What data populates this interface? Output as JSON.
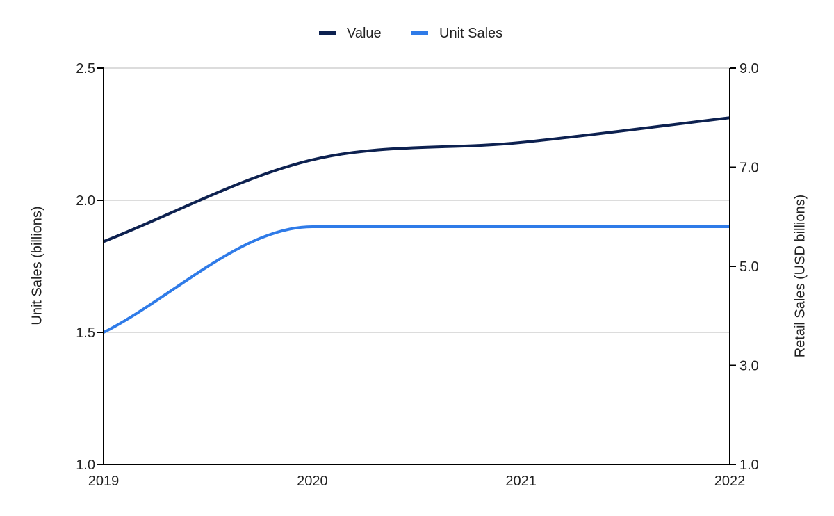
{
  "chart_data": {
    "type": "line",
    "x": [
      "2019",
      "2020",
      "2021",
      "2022"
    ],
    "series": [
      {
        "name": "Value",
        "axis": "right",
        "color": "#0d2150",
        "values": [
          5.5,
          7.15,
          7.5,
          8.0
        ]
      },
      {
        "name": "Unit Sales",
        "axis": "left",
        "color": "#2f7be8",
        "values": [
          1.5,
          1.9,
          1.9,
          1.9
        ]
      }
    ],
    "left_axis": {
      "label": "Unit Sales (billions)",
      "ylim": [
        1.0,
        2.5
      ],
      "ticks": [
        "1.0",
        "1.5",
        "2.0",
        "2.5"
      ]
    },
    "right_axis": {
      "label": "Retail Sales (USD billions)",
      "ylim": [
        1.0,
        9.0
      ],
      "ticks": [
        "1.0",
        "3.0",
        "5.0",
        "7.0",
        "9.0"
      ]
    },
    "grid": true,
    "legend_position": "top-center",
    "grid_color": "#c8c8c8",
    "axis_color": "#000000"
  }
}
